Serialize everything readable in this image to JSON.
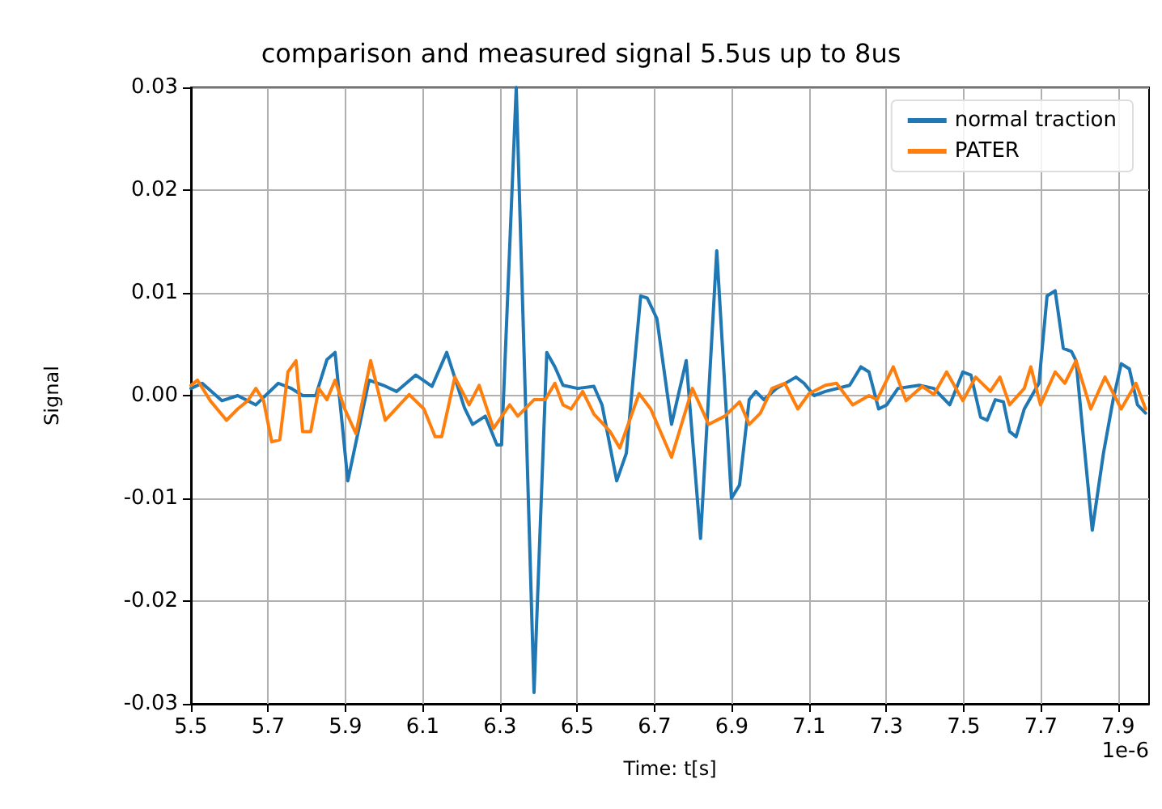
{
  "chart_data": {
    "type": "line",
    "title": "comparison and measured signal 5.5us up to 8us",
    "xlabel": "Time: t[s]",
    "ylabel": "Signal",
    "annotations": [
      "1e-6"
    ],
    "xlim": [
      5.5,
      7.98
    ],
    "xticks": [
      5.5,
      5.7,
      5.9,
      6.1,
      6.3,
      6.5,
      6.7,
      6.9,
      7.1,
      7.3,
      7.5,
      7.7,
      7.9
    ],
    "ylim": [
      -0.03,
      0.03
    ],
    "yticks": [
      -0.03,
      -0.02,
      -0.01,
      {
        "value": 0,
        "label": "0.00"
      },
      0.01,
      0.02,
      0.03
    ],
    "grid": true,
    "legend": "top right",
    "marker": "none",
    "line_style": "solid",
    "series": [
      {
        "name": "normal traction",
        "color": "#1f77b4",
        "x": [
          5.5,
          5.529,
          5.58,
          5.621,
          5.668,
          5.726,
          5.76,
          5.789,
          5.823,
          5.852,
          5.873,
          5.906,
          5.961,
          5.998,
          6.032,
          6.082,
          6.124,
          6.162,
          6.208,
          6.229,
          6.262,
          6.292,
          6.304,
          6.342,
          6.388,
          6.421,
          6.442,
          6.463,
          6.501,
          6.543,
          6.564,
          6.602,
          6.627,
          6.664,
          6.681,
          6.706,
          6.744,
          6.782,
          6.819,
          6.861,
          6.899,
          6.92,
          6.945,
          6.962,
          6.983,
          7.016,
          7.066,
          7.087,
          7.113,
          7.142,
          7.205,
          7.234,
          7.255,
          7.28,
          7.301,
          7.33,
          7.385,
          7.423,
          7.464,
          7.498,
          7.519,
          7.544,
          7.561,
          7.582,
          7.603,
          7.619,
          7.636,
          7.657,
          7.695,
          7.716,
          7.737,
          7.758,
          7.779,
          7.791,
          7.833,
          7.862,
          7.887,
          7.908,
          7.929,
          7.95,
          7.971
        ],
        "values": [
          0.0007,
          0.0012,
          -0.0005,
          0,
          -0.0009,
          0.0012,
          0.0007,
          0,
          0,
          0.0035,
          0.0042,
          -0.0083,
          0.0015,
          0.001,
          0.0004,
          0.002,
          0.0009,
          0.0042,
          -0.0012,
          -0.0028,
          -0.002,
          -0.0048,
          -0.0048,
          0.03,
          -0.0289,
          0.0042,
          0.0028,
          0.001,
          0.0007,
          0.0009,
          -0.0009,
          -0.0083,
          -0.0056,
          0.0097,
          0.0095,
          0.0075,
          -0.0028,
          0.0034,
          -0.0139,
          0.0141,
          -0.01,
          -0.0087,
          -0.0004,
          0.0004,
          -0.0004,
          0.0007,
          0.0018,
          0.0012,
          0,
          0.0004,
          0.001,
          0.0028,
          0.0023,
          -0.0013,
          -0.0009,
          0.0007,
          0.001,
          0.0007,
          -0.0009,
          0.0023,
          0.002,
          -0.0021,
          -0.0024,
          -0.0004,
          -0.0006,
          -0.0035,
          -0.004,
          -0.0013,
          0.0012,
          0.0097,
          0.0102,
          0.0046,
          0.0043,
          0.0034,
          -0.0131,
          -0.0056,
          -0.0004,
          0.0031,
          0.0026,
          -0.0009,
          -0.0017
        ]
      },
      {
        "name": "PATER",
        "color": "#ff7f0e",
        "x": [
          5.5,
          5.517,
          5.55,
          5.592,
          5.621,
          5.647,
          5.668,
          5.688,
          5.709,
          5.73,
          5.751,
          5.772,
          5.789,
          5.81,
          5.831,
          5.852,
          5.873,
          5.898,
          5.927,
          5.965,
          6.003,
          6.04,
          6.065,
          6.103,
          6.132,
          6.149,
          6.183,
          6.22,
          6.246,
          6.283,
          6.325,
          6.346,
          6.388,
          6.417,
          6.442,
          6.463,
          6.484,
          6.514,
          6.543,
          6.585,
          6.61,
          6.66,
          6.69,
          6.744,
          6.798,
          6.84,
          6.882,
          6.92,
          6.945,
          6.974,
          7.004,
          7.037,
          7.071,
          7.1,
          7.142,
          7.171,
          7.213,
          7.255,
          7.276,
          7.318,
          7.351,
          7.393,
          7.423,
          7.456,
          7.498,
          7.531,
          7.569,
          7.594,
          7.619,
          7.657,
          7.674,
          7.699,
          7.737,
          7.762,
          7.791,
          7.829,
          7.866,
          7.908,
          7.946,
          7.971
        ],
        "values": [
          0.001,
          0.0015,
          -0.0005,
          -0.0024,
          -0.0013,
          -0.0005,
          0.0007,
          -0.0005,
          -0.0045,
          -0.0043,
          0.0023,
          0.0034,
          -0.0035,
          -0.0035,
          0.0007,
          -0.0004,
          0.0015,
          -0.0013,
          -0.0037,
          0.0034,
          -0.0024,
          -0.0009,
          0.0001,
          -0.0013,
          -0.004,
          -0.004,
          0.0018,
          -0.0009,
          0.001,
          -0.0032,
          -0.0009,
          -0.002,
          -0.0004,
          -0.0004,
          0.0012,
          -0.0009,
          -0.0013,
          0.0004,
          -0.0018,
          -0.0035,
          -0.0051,
          0.0002,
          -0.0013,
          -0.006,
          0.0007,
          -0.0028,
          -0.002,
          -0.0006,
          -0.0028,
          -0.0017,
          0.0007,
          0.0012,
          -0.0013,
          0.0002,
          0.001,
          0.0012,
          -0.0009,
          0,
          -0.0004,
          0.0028,
          -0.0005,
          0.0009,
          0.0001,
          0.0023,
          -0.0005,
          0.0018,
          0.0004,
          0.0018,
          -0.0009,
          0.0007,
          0.0028,
          -0.0009,
          0.0023,
          0.0012,
          0.0034,
          -0.0013,
          0.0018,
          -0.0013,
          0.0012,
          -0.0013
        ]
      }
    ]
  }
}
